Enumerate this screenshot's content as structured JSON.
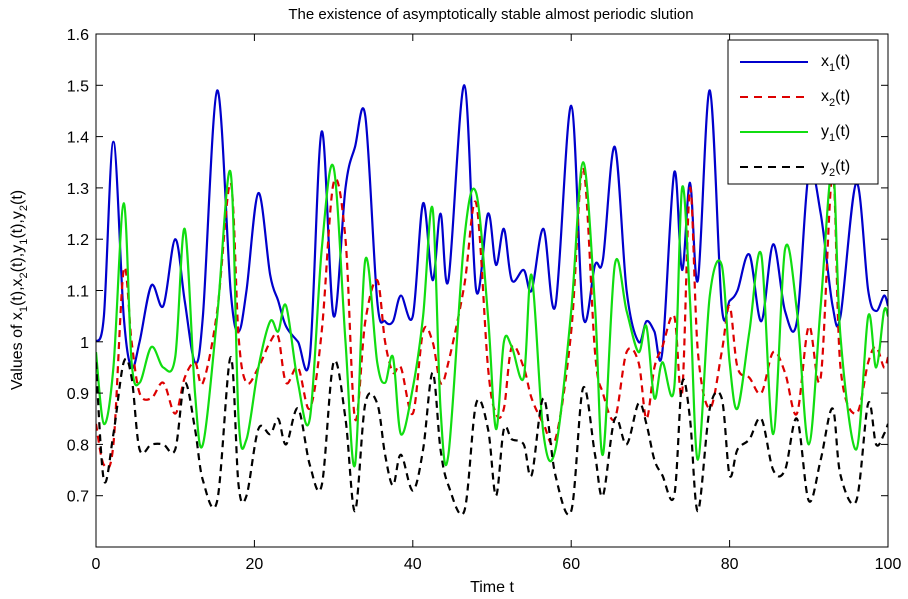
{
  "chart_data": {
    "type": "line",
    "title": "The existence of asymptotically stable almost periodic slution",
    "xlabel": "Time t",
    "ylabel_parts": [
      "Values of x",
      "1",
      "(t),x",
      "2",
      "(t),y",
      "1",
      "(t),y",
      "2",
      "(t)"
    ],
    "xlim": [
      0,
      100
    ],
    "ylim": [
      0.6,
      1.6
    ],
    "xticks": [
      0,
      20,
      40,
      60,
      80,
      100
    ],
    "yticks": [
      0.7,
      0.8,
      0.9,
      1,
      1.1,
      1.2,
      1.3,
      1.4,
      1.5,
      1.6
    ],
    "grid": false,
    "legend_position": "top-right",
    "x": [
      0,
      1,
      2.2,
      3.5,
      4.5,
      5.5,
      7,
      8.5,
      10,
      11.2,
      12.5,
      13.5,
      15.3,
      17,
      18,
      19,
      20.5,
      22,
      23,
      24,
      25.5,
      27,
      28.5,
      30,
      31.5,
      32.7,
      34,
      35.5,
      36.5,
      37.5,
      38.5,
      40,
      41.3,
      42.5,
      43.5,
      44.5,
      46.5,
      48,
      49.5,
      50.5,
      51.5,
      52.5,
      54,
      55,
      56.5,
      58,
      60,
      61.5,
      63,
      64,
      65.5,
      67,
      68.5,
      69.5,
      70.5,
      71.5,
      73,
      74,
      75,
      76,
      77.5,
      79,
      80,
      81,
      82.5,
      84,
      85.5,
      87,
      88.5,
      90,
      91.5,
      93,
      94,
      96,
      97.5,
      98.5,
      99.5,
      100
    ],
    "series": [
      {
        "name": "x1(t)",
        "label_main": "x",
        "label_sub": "1",
        "label_tail": "(t)",
        "color": "#0000cc",
        "dash": "solid",
        "values": [
          1.0,
          1.05,
          1.39,
          1.05,
          0.95,
          1.0,
          1.11,
          1.07,
          1.2,
          1.08,
          0.96,
          1.05,
          1.49,
          1.1,
          1.02,
          1.1,
          1.29,
          1.13,
          1.08,
          1.03,
          1.0,
          0.97,
          1.41,
          1.05,
          1.3,
          1.38,
          1.44,
          1.08,
          1.04,
          1.04,
          1.09,
          1.05,
          1.27,
          1.12,
          1.25,
          1.12,
          1.5,
          1.1,
          1.25,
          1.15,
          1.22,
          1.12,
          1.14,
          1.1,
          1.22,
          1.07,
          1.46,
          1.05,
          1.15,
          1.16,
          1.38,
          1.1,
          1.0,
          1.04,
          1.02,
          0.98,
          1.33,
          1.14,
          1.31,
          1.12,
          1.49,
          1.07,
          1.08,
          1.1,
          1.17,
          1.04,
          1.19,
          1.06,
          1.04,
          1.33,
          1.25,
          1.07,
          1.05,
          1.31,
          1.1,
          1.06,
          1.09,
          1.07
        ]
      },
      {
        "name": "x2(t)",
        "label_main": "x",
        "label_sub": "2",
        "label_tail": "(t)",
        "color": "#dd0000",
        "dash": "dashed",
        "values": [
          0.84,
          0.76,
          0.8,
          1.14,
          1.0,
          0.9,
          0.89,
          0.92,
          0.86,
          0.93,
          0.96,
          0.92,
          1.06,
          1.31,
          1.01,
          0.92,
          0.95,
          1.0,
          1.01,
          0.92,
          0.95,
          0.87,
          1.02,
          1.31,
          1.2,
          0.85,
          1.04,
          1.12,
          1.0,
          0.94,
          0.95,
          0.86,
          1.02,
          1.0,
          0.92,
          0.96,
          1.11,
          1.27,
          0.95,
          0.86,
          0.87,
          0.99,
          0.95,
          0.89,
          0.84,
          0.81,
          1.02,
          1.34,
          0.98,
          0.9,
          0.85,
          0.98,
          0.96,
          0.85,
          0.95,
          0.99,
          1.05,
          0.9,
          1.3,
          0.98,
          0.87,
          0.98,
          1.07,
          0.95,
          0.93,
          0.9,
          0.98,
          0.94,
          0.86,
          1.03,
          0.93,
          1.33,
          0.95,
          0.86,
          0.96,
          0.99,
          0.95,
          0.97
        ]
      },
      {
        "name": "y1(t)",
        "label_main": "y",
        "label_sub": "1",
        "label_tail": "(t)",
        "color": "#11dd11",
        "dash": "solid",
        "values": [
          0.98,
          0.84,
          0.95,
          1.27,
          0.96,
          0.92,
          0.99,
          0.95,
          0.97,
          1.22,
          0.9,
          0.8,
          1.05,
          1.33,
          0.85,
          0.81,
          0.95,
          1.04,
          1.02,
          1.07,
          0.92,
          0.85,
          1.18,
          1.34,
          1.0,
          0.76,
          1.16,
          0.96,
          0.92,
          0.97,
          0.82,
          0.91,
          1.05,
          1.26,
          0.87,
          0.78,
          1.2,
          1.29,
          1.05,
          0.83,
          1.0,
          0.99,
          0.93,
          1.13,
          0.82,
          0.79,
          1.06,
          1.35,
          1.07,
          0.78,
          1.15,
          1.06,
          0.98,
          1.03,
          0.89,
          0.96,
          0.91,
          1.3,
          1.08,
          0.77,
          1.09,
          1.15,
          0.96,
          0.87,
          1.02,
          1.17,
          0.82,
          1.18,
          1.06,
          0.8,
          1.07,
          1.34,
          1.01,
          0.79,
          1.05,
          0.95,
          1.06,
          1.05
        ]
      },
      {
        "name": "y2(t)",
        "label_main": "y",
        "label_sub": "2",
        "label_tail": "(t)",
        "color": "#000000",
        "dash": "dashed",
        "values": [
          0.96,
          0.73,
          0.82,
          0.96,
          0.93,
          0.79,
          0.8,
          0.8,
          0.79,
          0.92,
          0.83,
          0.73,
          0.69,
          0.97,
          0.72,
          0.7,
          0.83,
          0.82,
          0.85,
          0.8,
          0.87,
          0.76,
          0.72,
          0.96,
          0.85,
          0.67,
          0.88,
          0.88,
          0.78,
          0.72,
          0.78,
          0.71,
          0.79,
          0.94,
          0.79,
          0.72,
          0.67,
          0.88,
          0.83,
          0.7,
          0.83,
          0.81,
          0.8,
          0.74,
          0.89,
          0.74,
          0.67,
          0.91,
          0.78,
          0.7,
          0.85,
          0.8,
          0.88,
          0.84,
          0.77,
          0.74,
          0.7,
          0.92,
          0.85,
          0.67,
          0.87,
          0.89,
          0.74,
          0.79,
          0.81,
          0.85,
          0.75,
          0.75,
          0.85,
          0.69,
          0.77,
          0.87,
          0.74,
          0.69,
          0.88,
          0.8,
          0.82,
          0.84
        ]
      }
    ]
  }
}
